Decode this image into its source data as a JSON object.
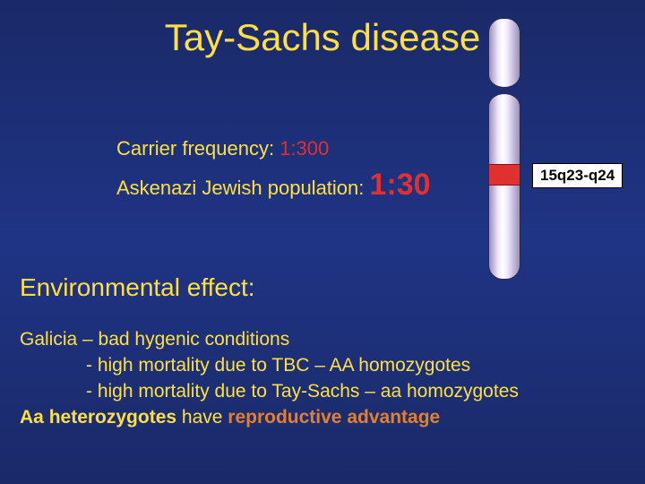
{
  "title": "Tay-Sachs disease",
  "freq": {
    "line1_label": "Carrier frequency: ",
    "line1_value": "1:300",
    "line2_label": "Askenazi Jewish population: ",
    "line2_value": "1:30"
  },
  "chromosome": {
    "locus": "15q23-q24",
    "band_color": "#e03030",
    "arm_gradient_light": "#ffffff",
    "arm_gradient_dark": "#9a8fb8"
  },
  "env_heading": "Environmental effect:",
  "body": {
    "l1": "Galicia – bad hygenic conditions",
    "l2": "- high mortality due to TBC – AA homozygotes",
    "l3": "- high mortality due to Tay-Sachs  – aa homozygotes",
    "l4_a": "Aa ",
    "l4_b": "heterozygotes",
    "l4_c": " have ",
    "l4_d": "reproductive",
    "l4_e": "  ",
    "l4_f": "advantage"
  },
  "colors": {
    "bg_top": "#1a2968",
    "bg_mid": "#1f3485",
    "text_yellow": "#ffe040",
    "text_red": "#e03030",
    "text_orange": "#e08030"
  }
}
